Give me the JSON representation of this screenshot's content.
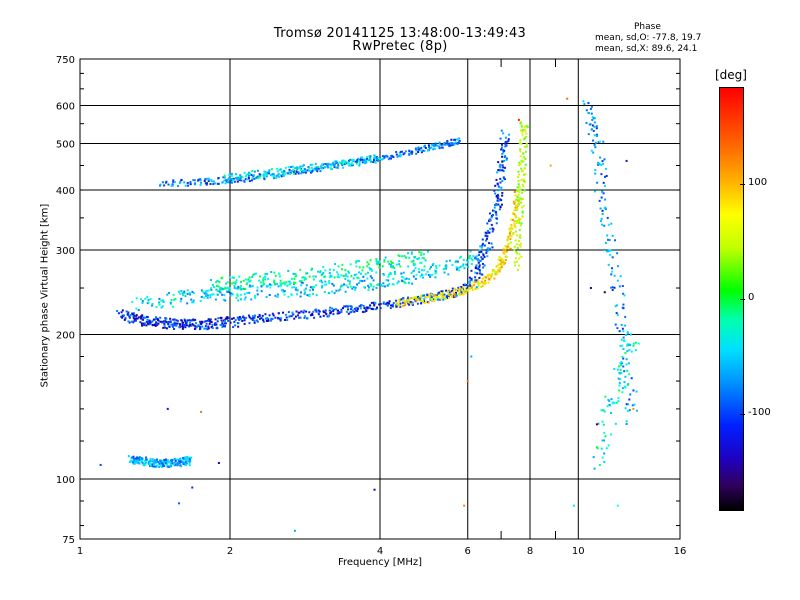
{
  "header": {
    "title": "Tromsø 20141125 13:48:00-13:49:43",
    "subtitle": "RwPretec (8p)",
    "phase_title": "Phase",
    "phase_o": "mean, sd,O: -77.8, 19.7",
    "phase_x": "mean, sd,X:  89.6, 24.1"
  },
  "colorbar": {
    "unit": "[deg]",
    "ticks": [
      {
        "label": "100",
        "value": 100
      },
      {
        "label": "0",
        "value": 0
      },
      {
        "label": "-100",
        "value": -100
      }
    ],
    "range": [
      -185,
      185
    ]
  },
  "chart_data": {
    "type": "scatter",
    "xlabel": "Frequency [MHz]",
    "ylabel": "Stationary phase Virtual Height [km]",
    "xscale": "log",
    "yscale": "log",
    "xlim": [
      1,
      16
    ],
    "ylim": [
      75,
      750
    ],
    "xticks": [
      {
        "label": "1",
        "value": 1
      },
      {
        "label": "2",
        "value": 2
      },
      {
        "label": "4",
        "value": 4
      },
      {
        "label": "6",
        "value": 6
      },
      {
        "label": "8",
        "value": 8
      },
      {
        "label": "10",
        "value": 10
      },
      {
        "label": "16",
        "value": 16
      }
    ],
    "xminor": [
      7,
      9
    ],
    "yticks": [
      {
        "label": "75",
        "value": 75
      },
      {
        "label": "100",
        "value": 100
      },
      {
        "label": "200",
        "value": 200
      },
      {
        "label": "300",
        "value": 300
      },
      {
        "label": "400",
        "value": 400
      },
      {
        "label": "500",
        "value": 500
      },
      {
        "label": "600",
        "value": 600
      },
      {
        "label": "750",
        "value": 750
      }
    ],
    "grid": true,
    "color_variable": "phase [deg]",
    "traces": [
      {
        "x": [
          1.26,
          1.3,
          1.35,
          1.4,
          1.45,
          1.5,
          1.56,
          1.62,
          1.66
        ],
        "y": [
          110,
          109,
          109,
          108,
          108,
          108,
          108,
          109,
          109
        ],
        "phase": -60,
        "spread": 0.02
      },
      {
        "x": [
          1.2,
          1.28,
          1.35,
          1.42,
          1.5,
          1.58,
          1.65,
          1.75,
          1.85,
          1.95,
          2.1
        ],
        "y": [
          222,
          217,
          214,
          212,
          211,
          210,
          210,
          210,
          211,
          212,
          213
        ],
        "phase": -100,
        "spread": 0.025
      },
      {
        "x": [
          2.1,
          2.3,
          2.5,
          2.8,
          3.1,
          3.4,
          3.7,
          4.0,
          4.4,
          4.8,
          5.2,
          5.6,
          6.0
        ],
        "y": [
          214,
          216,
          218,
          220,
          222,
          225,
          227,
          230,
          233,
          236,
          240,
          244,
          250
        ],
        "phase": -95,
        "spread": 0.02
      },
      {
        "x": [
          1.3,
          1.5,
          1.7,
          1.9,
          2.1,
          2.4,
          2.7,
          3.0,
          3.4,
          3.8,
          4.2,
          4.7,
          5.2,
          5.8,
          6.3
        ],
        "y": [
          230,
          236,
          240,
          242,
          244,
          246,
          248,
          250,
          253,
          256,
          260,
          265,
          272,
          282,
          290
        ],
        "phase": -45,
        "spread": 0.035
      },
      {
        "x": [
          1.8,
          2.0,
          2.2,
          2.5,
          2.8,
          3.2,
          3.6,
          4.0,
          4.5,
          5.0
        ],
        "y": [
          250,
          255,
          258,
          262,
          265,
          270,
          275,
          280,
          287,
          295
        ],
        "phase": -20,
        "spread": 0.035
      },
      {
        "x": [
          4.3,
          4.8,
          5.3,
          5.8,
          6.2,
          6.6,
          6.9,
          7.1,
          7.3,
          7.45,
          7.55
        ],
        "y": [
          232,
          236,
          240,
          246,
          252,
          262,
          275,
          290,
          315,
          350,
          400
        ],
        "phase": 95,
        "spread": 0.02
      },
      {
        "x": [
          7.55,
          7.6,
          7.65,
          7.7,
          7.75,
          7.8
        ],
        "y": [
          280,
          330,
          380,
          430,
          490,
          560
        ],
        "phase": 60,
        "spread": 0.03
      },
      {
        "x": [
          6.1,
          6.3,
          6.5,
          6.7,
          6.85,
          6.95,
          7.05,
          7.15
        ],
        "y": [
          255,
          275,
          300,
          330,
          370,
          410,
          460,
          520
        ],
        "phase": -90,
        "spread": 0.035
      },
      {
        "x": [
          1.45,
          1.7,
          1.9,
          2.1,
          2.4,
          2.7,
          3.0,
          3.4,
          3.8,
          4.2,
          4.7,
          5.1,
          5.5,
          5.8
        ],
        "y": [
          412,
          415,
          418,
          422,
          428,
          436,
          444,
          454,
          462,
          472,
          482,
          492,
          500,
          508
        ],
        "phase": -75,
        "spread": 0.015
      },
      {
        "x": [
          1.95,
          2.2,
          2.5,
          2.8,
          3.2,
          3.6,
          4.0
        ],
        "y": [
          425,
          430,
          436,
          442,
          450,
          458,
          466
        ],
        "phase": -40,
        "spread": 0.02
      },
      {
        "x": [
          10.5,
          10.8,
          11.1,
          11.5,
          12.0,
          12.4,
          12.9
        ],
        "y": [
          600,
          520,
          420,
          320,
          240,
          180,
          130
        ],
        "phase": -70,
        "spread": 0.05
      },
      {
        "x": [
          11.0,
          11.6,
          12.2,
          12.8
        ],
        "y": [
          110,
          140,
          170,
          200
        ],
        "phase": -30,
        "spread": 0.06
      }
    ]
  }
}
